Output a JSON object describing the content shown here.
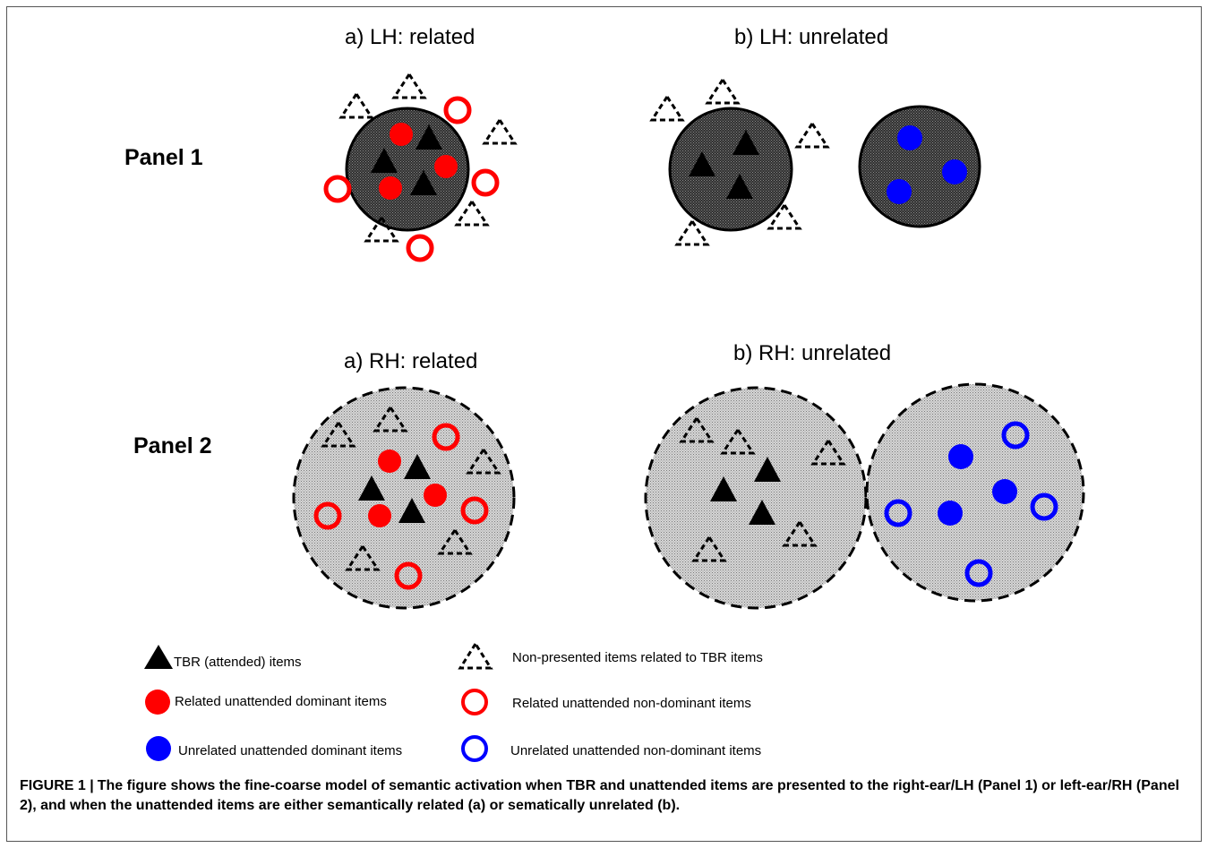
{
  "titles": {
    "p1a": "a) LH: related",
    "p1b": "b) LH: unrelated",
    "p2a": "a) RH: related",
    "p2b": "b) RH: unrelated"
  },
  "panels": {
    "panel1": "Panel 1",
    "panel2": "Panel 2"
  },
  "legend": {
    "tbr": "TBR (attended) items",
    "non_presented": "Non-presented  items related to TBR items",
    "related_dominant": "Related unattended dominant items",
    "related_nondominant": "Related  unattended  non-dominant  items",
    "unrelated_dominant": "Unrelated unattended dominant items",
    "unrelated_nondominant": "Unrelated  unattended  non-dominant  items"
  },
  "caption": {
    "label": "FIGURE 1 |",
    "text": "The figure shows the fine-coarse model of semantic activation when TBR and unattended items are presented to the right-ear/LH (Panel 1) or left-ear/RH (Panel 2), and when the unattended items are either semantically related (a) or sematically unrelated (b)."
  },
  "colors": {
    "red": "#ff0000",
    "blue": "#0000ff",
    "black": "#000000",
    "dark_fill": "#4a4a4a",
    "light_fill": "#c8c8c8"
  }
}
